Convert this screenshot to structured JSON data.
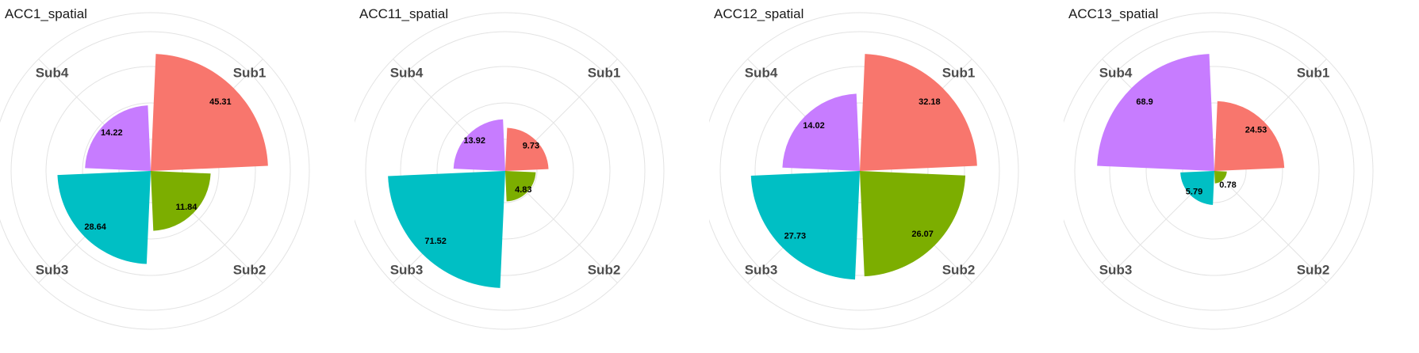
{
  "chart_data": [
    {
      "type": "polar-bar",
      "title": "ACC1_spatial",
      "categories": [
        "Sub1",
        "Sub2",
        "Sub3",
        "Sub4"
      ],
      "values": [
        45.31,
        11.84,
        28.64,
        14.22
      ],
      "value_labels": [
        "45.31",
        "11.84",
        "28.64",
        "14.22"
      ],
      "rmax": 45.31,
      "grid": true
    },
    {
      "type": "polar-bar",
      "title": "ACC11_spatial",
      "categories": [
        "Sub1",
        "Sub2",
        "Sub3",
        "Sub4"
      ],
      "values": [
        9.73,
        4.83,
        71.52,
        13.92
      ],
      "value_labels": [
        "9.73",
        "4.83",
        "71.52",
        "13.92"
      ],
      "rmax": 71.52,
      "grid": true
    },
    {
      "type": "polar-bar",
      "title": "ACC12_spatial",
      "categories": [
        "Sub1",
        "Sub2",
        "Sub3",
        "Sub4"
      ],
      "values": [
        32.18,
        26.07,
        27.73,
        14.02
      ],
      "value_labels": [
        "32.18",
        "26.07",
        "27.73",
        "14.02"
      ],
      "rmax": 32.18,
      "grid": true
    },
    {
      "type": "polar-bar",
      "title": "ACC13_spatial",
      "categories": [
        "Sub1",
        "Sub2",
        "Sub3",
        "Sub4"
      ],
      "values": [
        24.53,
        0.78,
        5.79,
        68.9
      ],
      "value_labels": [
        "24.53",
        "0.78",
        "5.79",
        "68.9"
      ],
      "rmax": 68.9,
      "grid": true
    }
  ],
  "colors": {
    "Sub1": "#F8766D",
    "Sub2": "#7CAE00",
    "Sub3": "#00BFC4",
    "Sub4": "#C77CFF",
    "grid": "#e3e3e3"
  }
}
